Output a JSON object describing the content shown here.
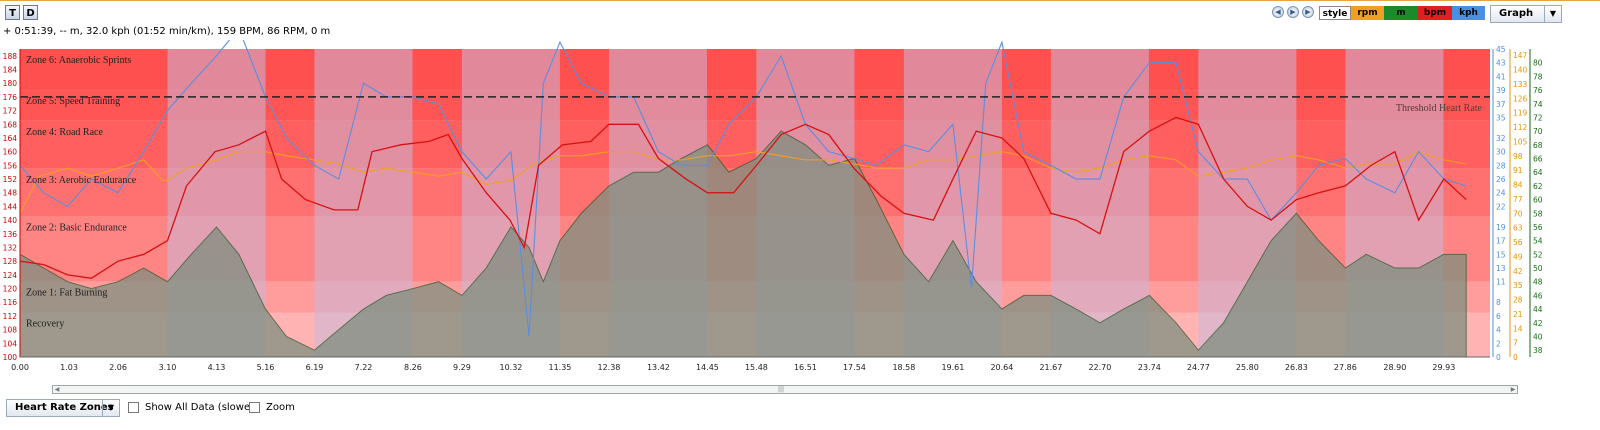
{
  "toolbar": {
    "t_label": "T",
    "d_label": "D"
  },
  "status_text": "+ 0:51:39, -- m, 32.0 kph (01:52 min/km), 159 BPM, 86 RPM, 0 m",
  "legend": [
    {
      "label": "style",
      "color": "#ffffff",
      "text_color": "#000000"
    },
    {
      "label": "rpm",
      "color": "#f0a020",
      "text_color": "#000000"
    },
    {
      "label": "m",
      "color": "#1a8a2a",
      "text_color": "#000000"
    },
    {
      "label": "bpm",
      "color": "#e02020",
      "text_color": "#000000"
    },
    {
      "label": "kph",
      "color": "#4a90e2",
      "text_color": "#000000"
    }
  ],
  "view_select": "Graph",
  "bottom": {
    "zones_select": "Heart Rate Zones",
    "show_all_label": "Show All Data (slower)",
    "zoom_label": "Zoom"
  },
  "chart_data": {
    "type": "line",
    "x_ticks": [
      "0.00",
      "1.03",
      "2.06",
      "3.10",
      "4.13",
      "5.16",
      "6.19",
      "7.22",
      "8.26",
      "9.29",
      "10.32",
      "11.35",
      "12.38",
      "13.42",
      "14.45",
      "15.48",
      "16.51",
      "17.54",
      "18.58",
      "19.61",
      "20.64",
      "21.67",
      "22.70",
      "23.74",
      "24.77",
      "25.80",
      "26.83",
      "27.86",
      "28.90",
      "29.93"
    ],
    "xlim": [
      0,
      30.9
    ],
    "bpm_axis": {
      "ylim": [
        100,
        190
      ],
      "ticks": [
        "100",
        "104",
        "108",
        "112",
        "116",
        "120",
        "124",
        "128",
        "132",
        "136",
        "140",
        "144",
        "148",
        "152",
        "156",
        "160",
        "164",
        "168",
        "172",
        "176",
        "180",
        "184",
        "188"
      ],
      "color": "#cc0000"
    },
    "kph_axis": {
      "ylim": [
        0,
        45
      ],
      "ticks": [
        "0",
        "2",
        "4",
        "6",
        "8",
        "11",
        "13",
        "15",
        "17",
        "19",
        "22",
        "24",
        "26",
        "28",
        "30",
        "32",
        "35",
        "37",
        "39",
        "41",
        "43",
        "45"
      ],
      "color": "#4a90e2"
    },
    "rpm_axis": {
      "ylim": [
        0,
        150
      ],
      "ticks": [
        "0",
        "7",
        "14",
        "21",
        "28",
        "35",
        "42",
        "49",
        "56",
        "63",
        "70",
        "77",
        "84",
        "91",
        "98",
        "105",
        "112",
        "119",
        "126",
        "133",
        "140",
        "147"
      ],
      "color": "#e69500"
    },
    "m_axis": {
      "ylim": [
        37,
        82
      ],
      "ticks": [
        "38",
        "40",
        "42",
        "44",
        "46",
        "48",
        "50",
        "52",
        "54",
        "56",
        "58",
        "60",
        "62",
        "64",
        "66",
        "68",
        "70",
        "72",
        "74",
        "76",
        "78",
        "80"
      ],
      "color": "#1a6a1a"
    },
    "zones": [
      {
        "name": "Recovery",
        "from": 100,
        "to": 113,
        "color": "#ffb3b3"
      },
      {
        "name": "Zone 1: Fat Burning",
        "from": 113,
        "to": 122,
        "color": "#ff9c9c"
      },
      {
        "name": "Zone 2: Basic Endurance",
        "from": 122,
        "to": 141,
        "color": "#ff8585"
      },
      {
        "name": "Zone 3: Aerobic Endurance",
        "from": 141,
        "to": 155,
        "color": "#ff7070"
      },
      {
        "name": "Zone 4: Road Race",
        "from": 155,
        "to": 169,
        "color": "#ff5f5f"
      },
      {
        "name": "Zone 5: Speed Training",
        "from": 169,
        "to": 178,
        "color": "#ff5555"
      },
      {
        "name": "Zone 6: Anaerobic Sprints",
        "from": 178,
        "to": 190,
        "color": "#ff5050"
      }
    ],
    "threshold": {
      "label": "Threshold Heart Rate",
      "value": 176
    },
    "bpm": [
      [
        0,
        128
      ],
      [
        0.5,
        127
      ],
      [
        1.0,
        124
      ],
      [
        1.5,
        123
      ],
      [
        2.06,
        128
      ],
      [
        2.6,
        130
      ],
      [
        3.1,
        134
      ],
      [
        3.5,
        150
      ],
      [
        4.1,
        160
      ],
      [
        4.6,
        162
      ],
      [
        5.16,
        166
      ],
      [
        5.5,
        152
      ],
      [
        6.0,
        146
      ],
      [
        6.6,
        143
      ],
      [
        7.1,
        143
      ],
      [
        7.4,
        160
      ],
      [
        8.0,
        162
      ],
      [
        8.6,
        163
      ],
      [
        9.0,
        165
      ],
      [
        9.29,
        158
      ],
      [
        9.8,
        148
      ],
      [
        10.3,
        140
      ],
      [
        10.6,
        132
      ],
      [
        10.9,
        156
      ],
      [
        11.4,
        162
      ],
      [
        12.0,
        163
      ],
      [
        12.38,
        168
      ],
      [
        13.0,
        168
      ],
      [
        13.42,
        158
      ],
      [
        14.0,
        152
      ],
      [
        14.45,
        148
      ],
      [
        15.0,
        148
      ],
      [
        15.48,
        156
      ],
      [
        16.0,
        165
      ],
      [
        16.51,
        168
      ],
      [
        17.0,
        165
      ],
      [
        17.54,
        155
      ],
      [
        18.1,
        147
      ],
      [
        18.58,
        142
      ],
      [
        19.2,
        140
      ],
      [
        19.61,
        152
      ],
      [
        20.1,
        166
      ],
      [
        20.64,
        164
      ],
      [
        21.1,
        158
      ],
      [
        21.67,
        142
      ],
      [
        22.2,
        140
      ],
      [
        22.7,
        136
      ],
      [
        23.2,
        160
      ],
      [
        23.74,
        166
      ],
      [
        24.3,
        170
      ],
      [
        24.77,
        168
      ],
      [
        25.3,
        152
      ],
      [
        25.8,
        144
      ],
      [
        26.3,
        140
      ],
      [
        26.83,
        146
      ],
      [
        27.3,
        148
      ],
      [
        27.86,
        150
      ],
      [
        28.4,
        156
      ],
      [
        28.9,
        160
      ],
      [
        29.4,
        140
      ],
      [
        29.93,
        152
      ],
      [
        30.4,
        146
      ]
    ],
    "kph": [
      [
        0,
        28
      ],
      [
        0.5,
        24
      ],
      [
        1.0,
        22
      ],
      [
        1.5,
        26
      ],
      [
        2.06,
        24
      ],
      [
        2.6,
        30
      ],
      [
        3.1,
        36
      ],
      [
        3.6,
        40
      ],
      [
        4.13,
        44
      ],
      [
        4.6,
        48
      ],
      [
        5.16,
        38
      ],
      [
        5.6,
        32
      ],
      [
        6.19,
        28
      ],
      [
        6.7,
        26
      ],
      [
        7.22,
        40
      ],
      [
        7.7,
        38
      ],
      [
        8.26,
        38
      ],
      [
        8.8,
        37
      ],
      [
        9.29,
        30
      ],
      [
        9.8,
        26
      ],
      [
        10.32,
        30
      ],
      [
        10.7,
        3
      ],
      [
        11.0,
        40
      ],
      [
        11.35,
        46
      ],
      [
        11.8,
        40
      ],
      [
        12.38,
        38
      ],
      [
        12.9,
        38
      ],
      [
        13.42,
        30
      ],
      [
        13.9,
        28
      ],
      [
        14.45,
        28
      ],
      [
        14.9,
        34
      ],
      [
        15.48,
        38
      ],
      [
        16.0,
        44
      ],
      [
        16.51,
        34
      ],
      [
        17.0,
        30
      ],
      [
        17.54,
        29
      ],
      [
        18.0,
        28
      ],
      [
        18.58,
        31
      ],
      [
        19.1,
        30
      ],
      [
        19.61,
        34
      ],
      [
        20.0,
        10
      ],
      [
        20.3,
        40
      ],
      [
        20.64,
        46
      ],
      [
        21.1,
        30
      ],
      [
        21.67,
        28
      ],
      [
        22.2,
        26
      ],
      [
        22.7,
        26
      ],
      [
        23.2,
        38
      ],
      [
        23.74,
        43
      ],
      [
        24.3,
        43
      ],
      [
        24.77,
        30
      ],
      [
        25.3,
        26
      ],
      [
        25.8,
        26
      ],
      [
        26.3,
        20
      ],
      [
        26.83,
        24
      ],
      [
        27.3,
        28
      ],
      [
        27.86,
        29
      ],
      [
        28.3,
        26
      ],
      [
        28.9,
        24
      ],
      [
        29.4,
        30
      ],
      [
        29.93,
        26
      ],
      [
        30.4,
        25
      ]
    ],
    "rpm": [
      [
        0,
        70
      ],
      [
        0.4,
        88
      ],
      [
        1.0,
        92
      ],
      [
        1.5,
        88
      ],
      [
        2.06,
        92
      ],
      [
        2.6,
        96
      ],
      [
        3.0,
        86
      ],
      [
        3.1,
        86
      ],
      [
        3.5,
        92
      ],
      [
        4.13,
        96
      ],
      [
        4.6,
        100
      ],
      [
        5.16,
        100
      ],
      [
        5.6,
        98
      ],
      [
        6.19,
        96
      ],
      [
        6.7,
        94
      ],
      [
        7.22,
        90
      ],
      [
        7.7,
        92
      ],
      [
        8.26,
        90
      ],
      [
        8.8,
        88
      ],
      [
        9.29,
        90
      ],
      [
        9.8,
        84
      ],
      [
        10.32,
        86
      ],
      [
        10.8,
        94
      ],
      [
        11.35,
        98
      ],
      [
        11.8,
        98
      ],
      [
        12.38,
        100
      ],
      [
        12.9,
        100
      ],
      [
        13.42,
        96
      ],
      [
        13.9,
        96
      ],
      [
        14.45,
        98
      ],
      [
        14.9,
        98
      ],
      [
        15.48,
        100
      ],
      [
        16.0,
        98
      ],
      [
        16.51,
        96
      ],
      [
        17.0,
        96
      ],
      [
        17.54,
        94
      ],
      [
        18.0,
        92
      ],
      [
        18.58,
        92
      ],
      [
        19.1,
        96
      ],
      [
        19.61,
        96
      ],
      [
        20.1,
        98
      ],
      [
        20.64,
        100
      ],
      [
        21.1,
        98
      ],
      [
        21.67,
        92
      ],
      [
        22.2,
        90
      ],
      [
        22.7,
        92
      ],
      [
        23.2,
        96
      ],
      [
        23.74,
        98
      ],
      [
        24.3,
        96
      ],
      [
        24.77,
        88
      ],
      [
        25.3,
        90
      ],
      [
        25.8,
        92
      ],
      [
        26.3,
        96
      ],
      [
        26.83,
        98
      ],
      [
        27.3,
        96
      ],
      [
        27.86,
        92
      ],
      [
        28.3,
        94
      ],
      [
        28.9,
        94
      ],
      [
        29.4,
        100
      ],
      [
        29.93,
        96
      ],
      [
        30.4,
        94
      ]
    ],
    "m": [
      [
        0,
        52
      ],
      [
        0.5,
        50
      ],
      [
        1.0,
        48
      ],
      [
        1.5,
        47
      ],
      [
        2.06,
        48
      ],
      [
        2.6,
        50
      ],
      [
        3.1,
        48
      ],
      [
        3.6,
        52
      ],
      [
        4.13,
        56
      ],
      [
        4.6,
        52
      ],
      [
        5.16,
        44
      ],
      [
        5.6,
        40
      ],
      [
        6.19,
        38
      ],
      [
        6.7,
        41
      ],
      [
        7.22,
        44
      ],
      [
        7.7,
        46
      ],
      [
        8.26,
        47
      ],
      [
        8.8,
        48
      ],
      [
        9.29,
        46
      ],
      [
        9.8,
        50
      ],
      [
        10.32,
        56
      ],
      [
        10.7,
        53
      ],
      [
        11.0,
        48
      ],
      [
        11.35,
        54
      ],
      [
        11.8,
        58
      ],
      [
        12.38,
        62
      ],
      [
        12.9,
        64
      ],
      [
        13.42,
        64
      ],
      [
        13.9,
        66
      ],
      [
        14.45,
        68
      ],
      [
        14.9,
        64
      ],
      [
        15.48,
        66
      ],
      [
        16.0,
        70
      ],
      [
        16.51,
        68
      ],
      [
        17.0,
        65
      ],
      [
        17.54,
        66
      ],
      [
        18.0,
        60
      ],
      [
        18.58,
        52
      ],
      [
        19.1,
        48
      ],
      [
        19.61,
        54
      ],
      [
        20.1,
        48
      ],
      [
        20.64,
        44
      ],
      [
        21.1,
        46
      ],
      [
        21.67,
        46
      ],
      [
        22.2,
        44
      ],
      [
        22.7,
        42
      ],
      [
        23.2,
        44
      ],
      [
        23.74,
        46
      ],
      [
        24.3,
        42
      ],
      [
        24.77,
        38
      ],
      [
        25.3,
        42
      ],
      [
        25.8,
        48
      ],
      [
        26.3,
        54
      ],
      [
        26.83,
        58
      ],
      [
        27.3,
        54
      ],
      [
        27.86,
        50
      ],
      [
        28.3,
        52
      ],
      [
        28.9,
        50
      ],
      [
        29.4,
        50
      ],
      [
        29.93,
        52
      ],
      [
        30.4,
        52
      ]
    ]
  }
}
